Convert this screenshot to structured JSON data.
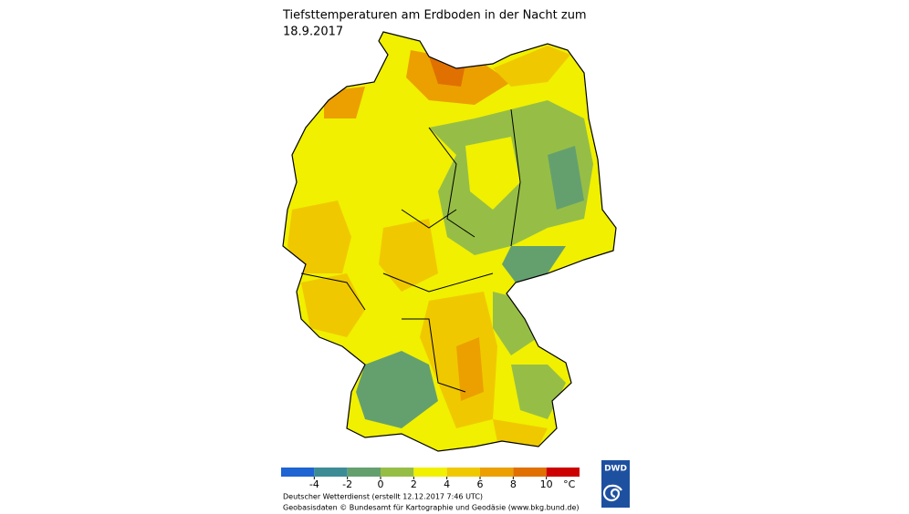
{
  "title": {
    "line1": "Tiefsttemperaturen am Erdboden in der Nacht zum",
    "line2": "18.9.2017"
  },
  "legend": {
    "bounds": [
      -6,
      -4,
      -2,
      0,
      2,
      4,
      6,
      8,
      10,
      12
    ],
    "colors": [
      "#1e64d2",
      "#3c8c96",
      "#64a06e",
      "#96be46",
      "#f0f000",
      "#f0c800",
      "#eba000",
      "#e07000",
      "#cc0000"
    ],
    "ticks": [
      -4,
      -2,
      0,
      2,
      4,
      6,
      8,
      10
    ],
    "unit": "°C"
  },
  "credits": [
    "Deutscher Wetterdienst (erstellt 12.12.2017 7:46 UTC)",
    "Geobasisdaten © Bundesamt für Kartographie und Geodäsie (www.bkg.bund.de)"
  ],
  "logo": "DWD"
}
